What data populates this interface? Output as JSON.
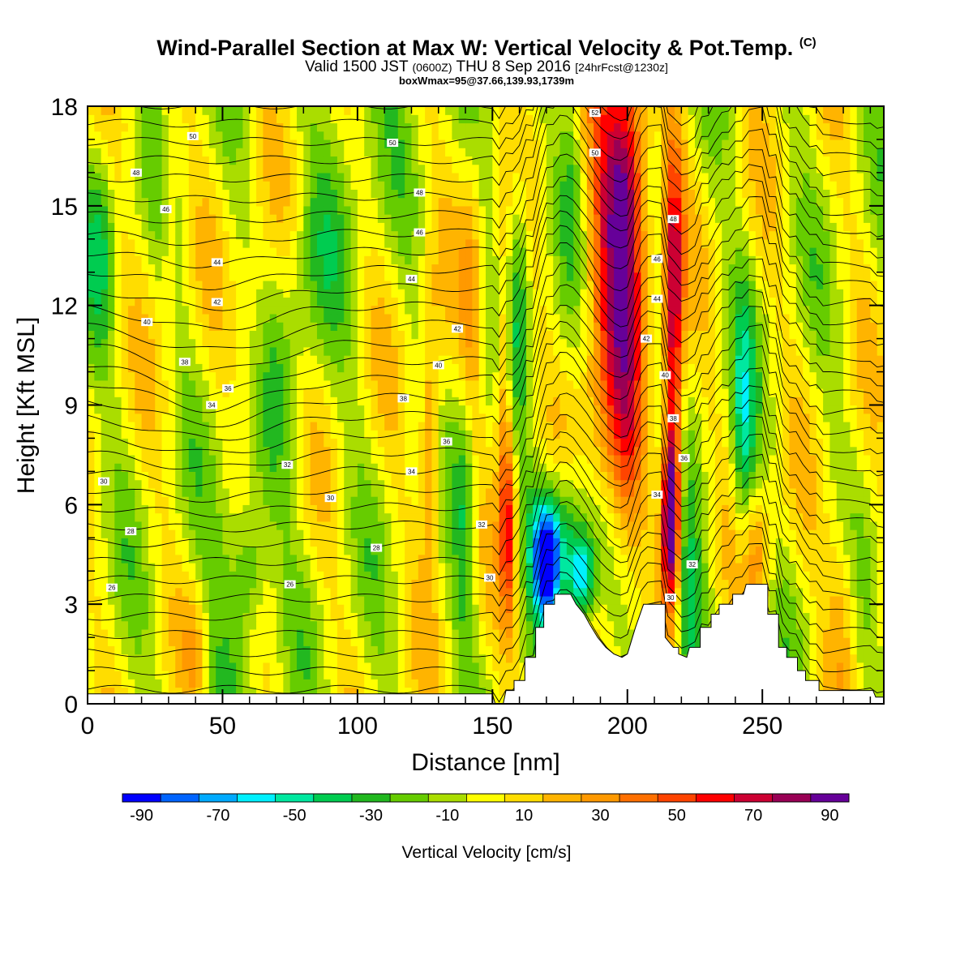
{
  "header": {
    "title": "Wind-Parallel Section at Max W: Vertical Velocity & Pot.Temp.",
    "title_mark": "(C)",
    "valid_prefix": "Valid 1500 JST",
    "valid_utc": "(0600Z)",
    "valid_date": "THU 8 Sep 2016",
    "forecast": "[24hrFcst@1230z]",
    "box_info": "boxWmax=95@37.66,139.93,1739m"
  },
  "chart_data": {
    "type": "heatmap",
    "xlabel": "Distance [nm]",
    "ylabel": "Height [Kft MSL]",
    "xlim": [
      0,
      295
    ],
    "ylim": [
      0,
      18
    ],
    "x_ticks": [
      0,
      50,
      100,
      150,
      200,
      250
    ],
    "y_ticks": [
      0,
      3,
      6,
      9,
      12,
      15,
      18
    ],
    "x_tick_labels": [
      "0",
      "50",
      "100",
      "150",
      "200",
      "250"
    ],
    "y_tick_labels": [
      "0",
      "3",
      "6",
      "9",
      "12",
      "15",
      "18"
    ],
    "colorbar": {
      "title": "Vertical Velocity [cm/s]",
      "levels": [
        -90,
        -80,
        -70,
        -60,
        -50,
        -40,
        -30,
        -20,
        -10,
        0,
        10,
        20,
        30,
        40,
        50,
        60,
        70,
        80,
        90,
        100
      ],
      "labels": [
        "-90",
        "-70",
        "-50",
        "-30",
        "-10",
        "10",
        "30",
        "50",
        "70",
        "90"
      ],
      "colors": [
        "#0000ff",
        "#0064ff",
        "#00aaff",
        "#00f0ff",
        "#00e8a0",
        "#00cc50",
        "#22b820",
        "#66cc00",
        "#aadd00",
        "#ffff00",
        "#ffdd00",
        "#ffb400",
        "#ff9900",
        "#ff7000",
        "#ff4400",
        "#ff0000",
        "#cc0033",
        "#990055",
        "#660099"
      ]
    },
    "terrain": [
      [
        0,
        0.3
      ],
      [
        150,
        0.3
      ],
      [
        151,
        0
      ],
      [
        154,
        0
      ],
      [
        155,
        0.4
      ],
      [
        158,
        0.4
      ],
      [
        158,
        0.7
      ],
      [
        162,
        0.7
      ],
      [
        162,
        1.4
      ],
      [
        166,
        1.4
      ],
      [
        166,
        2.3
      ],
      [
        169,
        2.3
      ],
      [
        169,
        3
      ],
      [
        173,
        3
      ],
      [
        173,
        3.3
      ],
      [
        179,
        3.3
      ],
      [
        181,
        3
      ],
      [
        184,
        2.7
      ],
      [
        186,
        2.4
      ],
      [
        189,
        2
      ],
      [
        192,
        1.7
      ],
      [
        195,
        1.5
      ],
      [
        198,
        1.4
      ],
      [
        200,
        1.5
      ],
      [
        203,
        2.3
      ],
      [
        206,
        3
      ],
      [
        214,
        3
      ],
      [
        214,
        2
      ],
      [
        217,
        1.7
      ],
      [
        219,
        1.7
      ],
      [
        219,
        1.5
      ],
      [
        222,
        1.4
      ],
      [
        223,
        1.7
      ],
      [
        227,
        1.7
      ],
      [
        227,
        2.3
      ],
      [
        231,
        2.3
      ],
      [
        231,
        2.7
      ],
      [
        234,
        2.7
      ],
      [
        234,
        3
      ],
      [
        239,
        3
      ],
      [
        239,
        3.3
      ],
      [
        243,
        3.3
      ],
      [
        244,
        3.6
      ],
      [
        252,
        3.6
      ],
      [
        252,
        2.7
      ],
      [
        256,
        2.7
      ],
      [
        256,
        1.7
      ],
      [
        259,
        1.7
      ],
      [
        259,
        1.4
      ],
      [
        263,
        1.4
      ],
      [
        263,
        1
      ],
      [
        266,
        1
      ],
      [
        266,
        0.7
      ],
      [
        271,
        0.7
      ],
      [
        271,
        0.4
      ],
      [
        291,
        0.4
      ],
      [
        292,
        0.2
      ],
      [
        295,
        0.2
      ]
    ],
    "wmax": {
      "value": 95,
      "x": 216,
      "y": 5.3
    },
    "theta_labels": [
      {
        "x": 39,
        "y": 17.1,
        "t": "50"
      },
      {
        "x": 18,
        "y": 16.0,
        "t": "48"
      },
      {
        "x": 29,
        "y": 14.9,
        "t": "46"
      },
      {
        "x": 48,
        "y": 13.3,
        "t": "44"
      },
      {
        "x": 48,
        "y": 12.1,
        "t": "42"
      },
      {
        "x": 22,
        "y": 11.5,
        "t": "40"
      },
      {
        "x": 36,
        "y": 10.3,
        "t": "38"
      },
      {
        "x": 52,
        "y": 9.5,
        "t": "36"
      },
      {
        "x": 46,
        "y": 9.0,
        "t": "34"
      },
      {
        "x": 6,
        "y": 6.7,
        "t": "30"
      },
      {
        "x": 16,
        "y": 5.2,
        "t": "28"
      },
      {
        "x": 9,
        "y": 3.5,
        "t": "26"
      },
      {
        "x": 74,
        "y": 7.2,
        "t": "32"
      },
      {
        "x": 90,
        "y": 6.2,
        "t": "30"
      },
      {
        "x": 107,
        "y": 4.7,
        "t": "28"
      },
      {
        "x": 75,
        "y": 3.6,
        "t": "26"
      },
      {
        "x": 113,
        "y": 16.9,
        "t": "50"
      },
      {
        "x": 123,
        "y": 15.4,
        "t": "48"
      },
      {
        "x": 123,
        "y": 14.2,
        "t": "46"
      },
      {
        "x": 120,
        "y": 12.8,
        "t": "44"
      },
      {
        "x": 137,
        "y": 11.3,
        "t": "42"
      },
      {
        "x": 130,
        "y": 10.2,
        "t": "40"
      },
      {
        "x": 117,
        "y": 9.2,
        "t": "38"
      },
      {
        "x": 133,
        "y": 7.9,
        "t": "36"
      },
      {
        "x": 120,
        "y": 7.0,
        "t": "34"
      },
      {
        "x": 146,
        "y": 5.4,
        "t": "32"
      },
      {
        "x": 149,
        "y": 3.8,
        "t": "30"
      },
      {
        "x": 188,
        "y": 17.8,
        "t": "52"
      },
      {
        "x": 188,
        "y": 16.6,
        "t": "50"
      },
      {
        "x": 217,
        "y": 14.6,
        "t": "48"
      },
      {
        "x": 211,
        "y": 13.4,
        "t": "46"
      },
      {
        "x": 211,
        "y": 12.2,
        "t": "44"
      },
      {
        "x": 207,
        "y": 11.0,
        "t": "42"
      },
      {
        "x": 214,
        "y": 9.9,
        "t": "40"
      },
      {
        "x": 217,
        "y": 8.6,
        "t": "38"
      },
      {
        "x": 221,
        "y": 7.4,
        "t": "36"
      },
      {
        "x": 211,
        "y": 6.3,
        "t": "34"
      },
      {
        "x": 224,
        "y": 4.2,
        "t": "32"
      },
      {
        "x": 216,
        "y": 3.2,
        "t": "30"
      }
    ]
  }
}
